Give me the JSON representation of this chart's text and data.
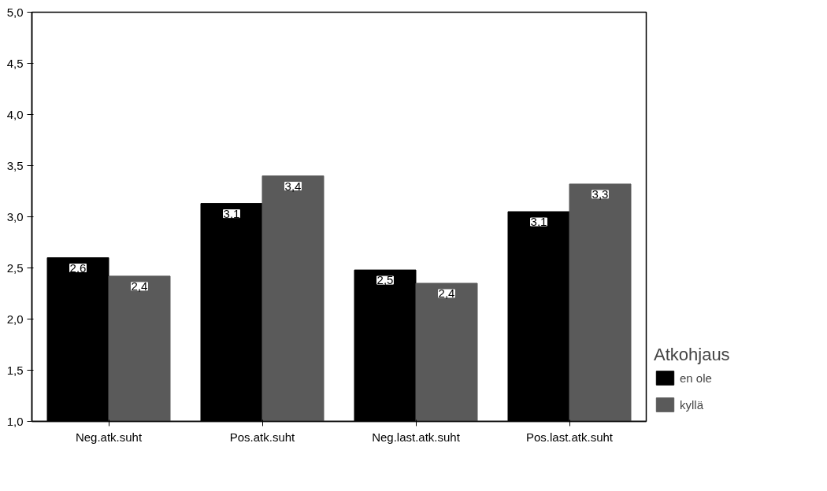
{
  "chart_data": {
    "type": "bar",
    "categories": [
      "Neg.atk.suht",
      "Pos.atk.suht",
      "Neg.last.atk.suht",
      "Pos.last.atk.suht"
    ],
    "series": [
      {
        "name": "en ole",
        "color": "#000000",
        "values": [
          2.6,
          3.13,
          2.48,
          3.05
        ],
        "value_labels": [
          "2,6",
          "3,1",
          "2,5",
          "3,1"
        ]
      },
      {
        "name": "kyllä",
        "color": "#5a5a5a",
        "values": [
          2.42,
          3.4,
          2.35,
          3.32
        ],
        "value_labels": [
          "2,4",
          "3,4",
          "2,4",
          "3,3"
        ]
      }
    ],
    "legend_title": "Atkohjaus",
    "legend": "right",
    "ylim": [
      1.0,
      5.0
    ],
    "yticks": [
      {
        "value": 1.0,
        "label": "1,0"
      },
      {
        "value": 1.5,
        "label": "1,5"
      },
      {
        "value": 2.0,
        "label": "2,0"
      },
      {
        "value": 2.5,
        "label": "2,5"
      },
      {
        "value": 3.0,
        "label": "3,0"
      },
      {
        "value": 3.5,
        "label": "3,5"
      },
      {
        "value": 4.0,
        "label": "4,0"
      },
      {
        "value": 4.5,
        "label": "4,5"
      },
      {
        "value": 5.0,
        "label": "5,0"
      }
    ],
    "grid": false
  }
}
